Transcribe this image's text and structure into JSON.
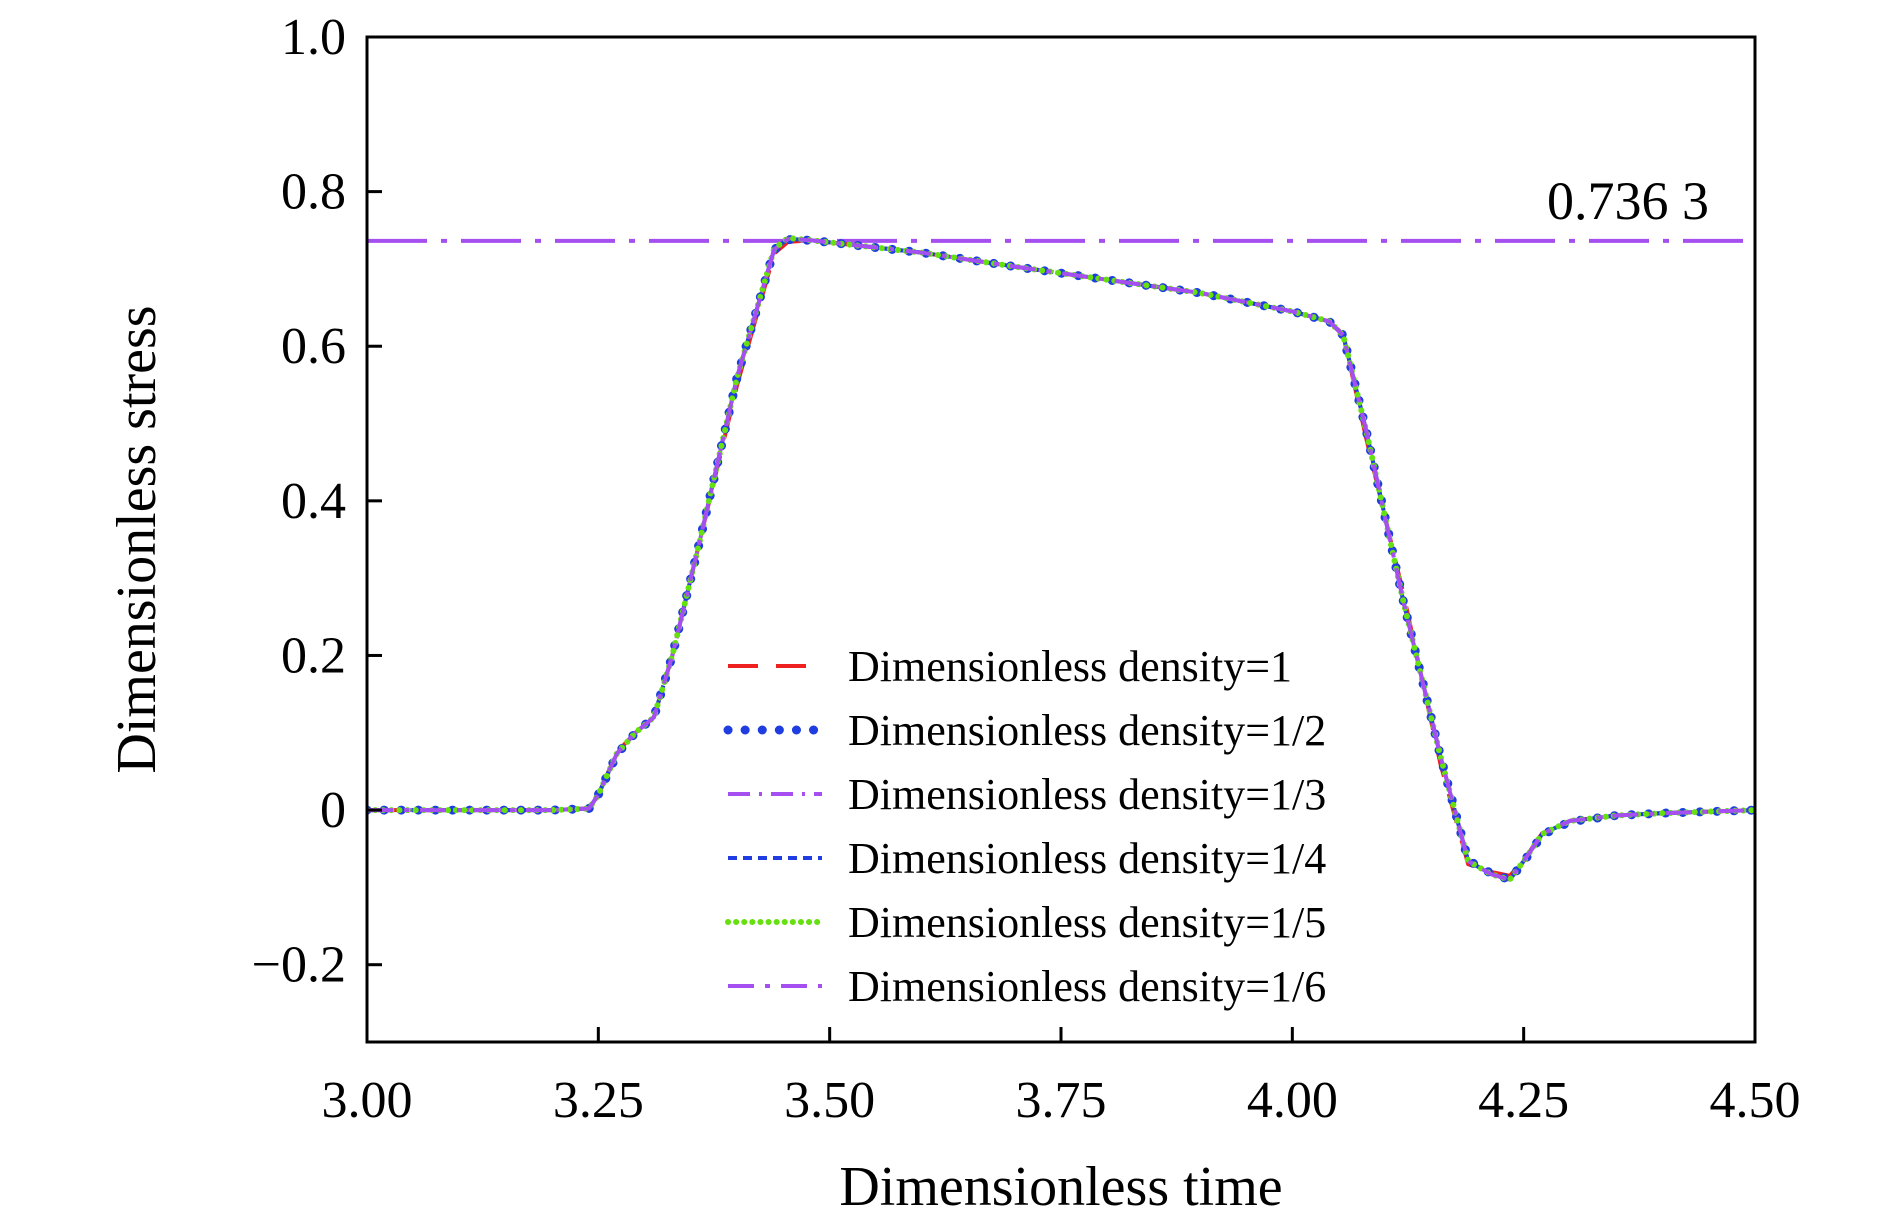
{
  "chart_data": {
    "type": "line",
    "title": "",
    "xlabel": "Dimensionless time",
    "ylabel": "Dimensionless stress",
    "xlim": [
      3.0,
      4.5
    ],
    "ylim": [
      -0.3,
      1.0
    ],
    "x_ticks": [
      3.0,
      3.25,
      3.5,
      3.75,
      4.0,
      4.25,
      4.5
    ],
    "x_tick_labels": [
      "3.00",
      "3.25",
      "3.50",
      "3.75",
      "4.00",
      "4.25",
      "4.50"
    ],
    "y_ticks": [
      -0.2,
      0,
      0.2,
      0.4,
      0.6,
      0.8,
      1.0
    ],
    "y_tick_labels": [
      "−0.2",
      "0",
      "0.2",
      "0.4",
      "0.6",
      "0.8",
      "1.0"
    ],
    "grid": false,
    "legend_position": "lower-center",
    "reference_line": {
      "y": 0.7363,
      "label": "0.736 3",
      "color": "#a64ff0"
    },
    "x": [
      3.0,
      3.1,
      3.2,
      3.24,
      3.25,
      3.27,
      3.29,
      3.31,
      3.33,
      3.36,
      3.4,
      3.44,
      3.455,
      3.48,
      3.6,
      3.7,
      3.8,
      3.9,
      4.0,
      4.04,
      4.055,
      4.08,
      4.12,
      4.16,
      4.19,
      4.215,
      4.235,
      4.25,
      4.27,
      4.3,
      4.35,
      4.4,
      4.45,
      4.5
    ],
    "series": [
      {
        "name": "Dimensionless density=1",
        "color": "#ee2020",
        "dash": "long-dash",
        "values": [
          0,
          0,
          0,
          0.002,
          0.02,
          0.075,
          0.1,
          0.12,
          0.2,
          0.35,
          0.55,
          0.72,
          0.735,
          0.737,
          0.721,
          0.703,
          0.686,
          0.669,
          0.645,
          0.632,
          0.615,
          0.48,
          0.28,
          0.06,
          -0.07,
          -0.08,
          -0.085,
          -0.065,
          -0.03,
          -0.014,
          -0.007,
          -0.004,
          -0.002,
          0
        ]
      },
      {
        "name": "Dimensionless density=1/2",
        "color": "#1f3de0",
        "dash": "round-dot",
        "values": [
          0,
          0,
          0,
          0.002,
          0.02,
          0.072,
          0.1,
          0.12,
          0.2,
          0.35,
          0.56,
          0.725,
          0.738,
          0.737,
          0.721,
          0.703,
          0.686,
          0.669,
          0.645,
          0.632,
          0.614,
          0.49,
          0.27,
          0.07,
          -0.065,
          -0.082,
          -0.09,
          -0.067,
          -0.032,
          -0.015,
          -0.007,
          -0.004,
          -0.002,
          0
        ]
      },
      {
        "name": "Dimensionless density=1/3",
        "color": "#a64ff0",
        "dash": "dash-dot",
        "values": [
          0,
          0,
          0,
          0.002,
          0.02,
          0.073,
          0.1,
          0.12,
          0.2,
          0.35,
          0.56,
          0.725,
          0.739,
          0.737,
          0.721,
          0.703,
          0.686,
          0.669,
          0.645,
          0.632,
          0.614,
          0.49,
          0.27,
          0.07,
          -0.066,
          -0.083,
          -0.09,
          -0.066,
          -0.031,
          -0.014,
          -0.007,
          -0.004,
          -0.002,
          0
        ]
      },
      {
        "name": "Dimensionless density=1/4",
        "color": "#1f3de0",
        "dash": "short-dash",
        "values": [
          0,
          0,
          0,
          0.002,
          0.02,
          0.073,
          0.1,
          0.12,
          0.2,
          0.35,
          0.56,
          0.725,
          0.739,
          0.737,
          0.721,
          0.703,
          0.686,
          0.669,
          0.645,
          0.632,
          0.614,
          0.49,
          0.27,
          0.07,
          -0.066,
          -0.083,
          -0.09,
          -0.066,
          -0.031,
          -0.014,
          -0.007,
          -0.004,
          -0.002,
          0
        ]
      },
      {
        "name": "Dimensionless density=1/5",
        "color": "#66e010",
        "dash": "dense-dot",
        "values": [
          0,
          0,
          0,
          0.002,
          0.02,
          0.073,
          0.1,
          0.12,
          0.2,
          0.35,
          0.56,
          0.726,
          0.74,
          0.737,
          0.721,
          0.703,
          0.686,
          0.669,
          0.645,
          0.632,
          0.614,
          0.49,
          0.27,
          0.07,
          -0.066,
          -0.083,
          -0.09,
          -0.066,
          -0.031,
          -0.014,
          -0.007,
          -0.004,
          -0.002,
          0
        ]
      },
      {
        "name": "Dimensionless density=1/6",
        "color": "#a64ff0",
        "dash": "long-dash-dot",
        "values": [
          0,
          0,
          0,
          0.002,
          0.02,
          0.073,
          0.1,
          0.12,
          0.2,
          0.35,
          0.56,
          0.725,
          0.739,
          0.737,
          0.721,
          0.703,
          0.686,
          0.669,
          0.645,
          0.632,
          0.614,
          0.49,
          0.27,
          0.07,
          -0.066,
          -0.083,
          -0.09,
          -0.066,
          -0.031,
          -0.014,
          -0.007,
          -0.004,
          -0.002,
          0
        ]
      }
    ]
  }
}
